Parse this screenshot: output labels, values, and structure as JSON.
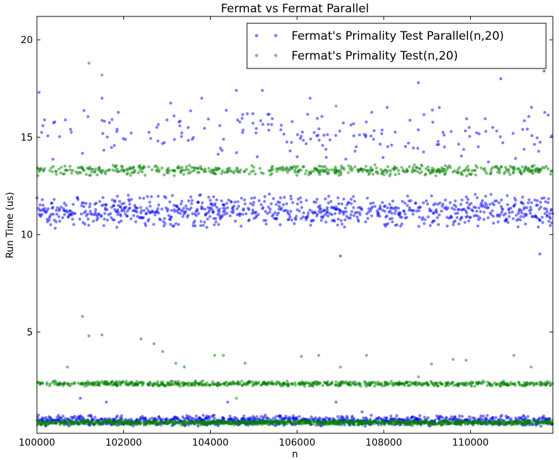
{
  "chart_data": {
    "type": "scatter",
    "title": "Fermat vs Fermat Parallel",
    "xlabel": "n",
    "ylabel": "Run Time (us)",
    "xlim": [
      100000,
      111900
    ],
    "ylim": [
      -0.2,
      21.2
    ],
    "x_ticks": [
      100000,
      102000,
      104000,
      106000,
      108000,
      110000
    ],
    "x_tick_labels": [
      "100000",
      "102000",
      "104000",
      "106000",
      "108000",
      "110000"
    ],
    "y_ticks": [
      5,
      10,
      15,
      20
    ],
    "y_tick_labels": [
      "5",
      "10",
      "15",
      "20"
    ],
    "grid": false,
    "legend_position": "top-right",
    "marker_alpha": 0.5,
    "series": [
      {
        "name": "Fermat's Primality Test Parallel(n,20)",
        "color": "#0000ff",
        "bands": [
          {
            "y_center": 11.2,
            "y_spread": 0.9,
            "density": 0.55
          },
          {
            "y_center": 15.2,
            "y_spread": 1.6,
            "density": 0.12
          },
          {
            "y_center": 0.45,
            "y_spread": 0.3,
            "density": 0.6
          }
        ],
        "points": [
          {
            "x": 101000,
            "y": 1.6
          },
          {
            "x": 101600,
            "y": 1.4
          },
          {
            "x": 104400,
            "y": 1.4
          },
          {
            "x": 106900,
            "y": 1.4
          },
          {
            "x": 107500,
            "y": 0.9
          },
          {
            "x": 107000,
            "y": 8.9
          },
          {
            "x": 111600,
            "y": 9.0
          },
          {
            "x": 108800,
            "y": 17.8
          },
          {
            "x": 110700,
            "y": 18.0
          },
          {
            "x": 111700,
            "y": 18.4
          },
          {
            "x": 104600,
            "y": 17.4
          },
          {
            "x": 105200,
            "y": 17.4
          },
          {
            "x": 100050,
            "y": 17.3
          },
          {
            "x": 101500,
            "y": 17.0
          },
          {
            "x": 103800,
            "y": 17.0
          },
          {
            "x": 106300,
            "y": 17.0
          }
        ]
      },
      {
        "name": "Fermat's Primality Test(n,20)",
        "color": "#008000",
        "bands": [
          {
            "y_center": 13.3,
            "y_spread": 0.3,
            "density": 0.35
          },
          {
            "y_center": 2.35,
            "y_spread": 0.15,
            "density": 0.45
          },
          {
            "y_center": 0.35,
            "y_spread": 0.15,
            "density": 0.7
          }
        ],
        "points": [
          {
            "x": 101200,
            "y": 18.8
          },
          {
            "x": 101500,
            "y": 18.2
          },
          {
            "x": 106900,
            "y": 16.6
          },
          {
            "x": 101050,
            "y": 5.8
          },
          {
            "x": 101200,
            "y": 4.8
          },
          {
            "x": 101500,
            "y": 4.85
          },
          {
            "x": 102400,
            "y": 4.65
          },
          {
            "x": 102700,
            "y": 4.4
          },
          {
            "x": 102900,
            "y": 4.0
          },
          {
            "x": 103200,
            "y": 3.4
          },
          {
            "x": 103400,
            "y": 3.2
          },
          {
            "x": 104100,
            "y": 3.8
          },
          {
            "x": 104300,
            "y": 3.8
          },
          {
            "x": 104800,
            "y": 3.4
          },
          {
            "x": 106100,
            "y": 3.75
          },
          {
            "x": 107000,
            "y": 3.2
          },
          {
            "x": 106500,
            "y": 3.8
          },
          {
            "x": 107600,
            "y": 3.8
          },
          {
            "x": 109100,
            "y": 3.35
          },
          {
            "x": 109600,
            "y": 3.6
          },
          {
            "x": 109900,
            "y": 3.55
          },
          {
            "x": 111000,
            "y": 3.8
          },
          {
            "x": 111400,
            "y": 3.2
          },
          {
            "x": 100700,
            "y": 3.2
          },
          {
            "x": 104600,
            "y": 1.6
          },
          {
            "x": 108800,
            "y": 2.7
          }
        ]
      }
    ]
  }
}
